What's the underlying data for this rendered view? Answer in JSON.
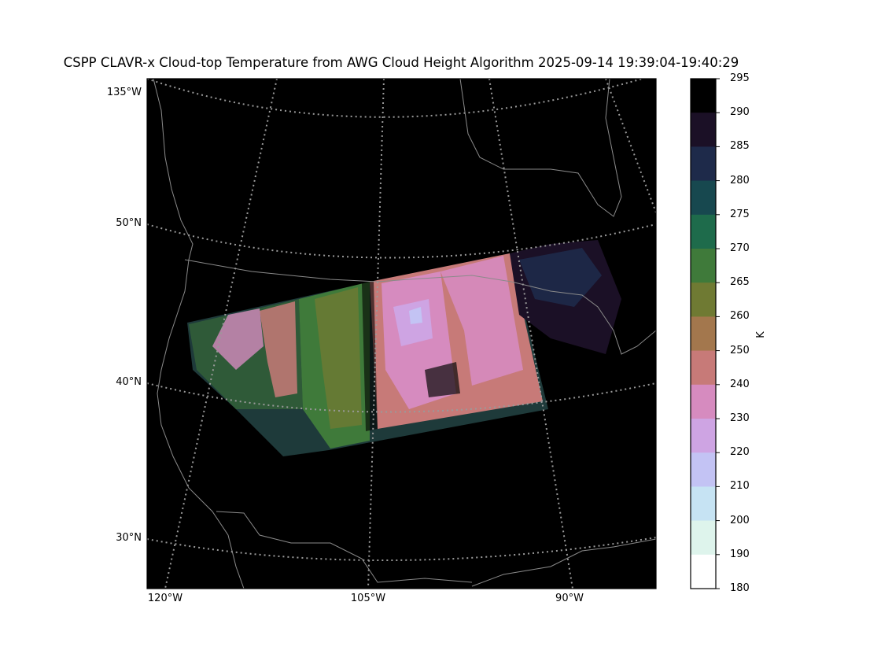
{
  "title": "CSPP CLAVR-x Cloud-top Temperature from AWG Cloud Height Algorithm 2025-09-14 19:39:04-19:40:29",
  "lat_labels": [
    "135°W",
    "50°N",
    "40°N",
    "30°N"
  ],
  "lon_labels": [
    "120°W",
    "105°W",
    "90°W"
  ],
  "colorbar": {
    "unit": "K",
    "ticks": [
      "295",
      "290",
      "285",
      "280",
      "275",
      "270",
      "265",
      "260",
      "250",
      "240",
      "230",
      "220",
      "210",
      "200",
      "190",
      "180"
    ],
    "colors": [
      "#000000",
      "#1b1026",
      "#1e2a4a",
      "#17484f",
      "#1e6b4b",
      "#3f7a3a",
      "#6f7a33",
      "#a3774d",
      "#c77a78",
      "#d68bbf",
      "#cea4e3",
      "#c3c3f4",
      "#c6e3f3",
      "#def4ec",
      "#ffffff"
    ]
  }
}
